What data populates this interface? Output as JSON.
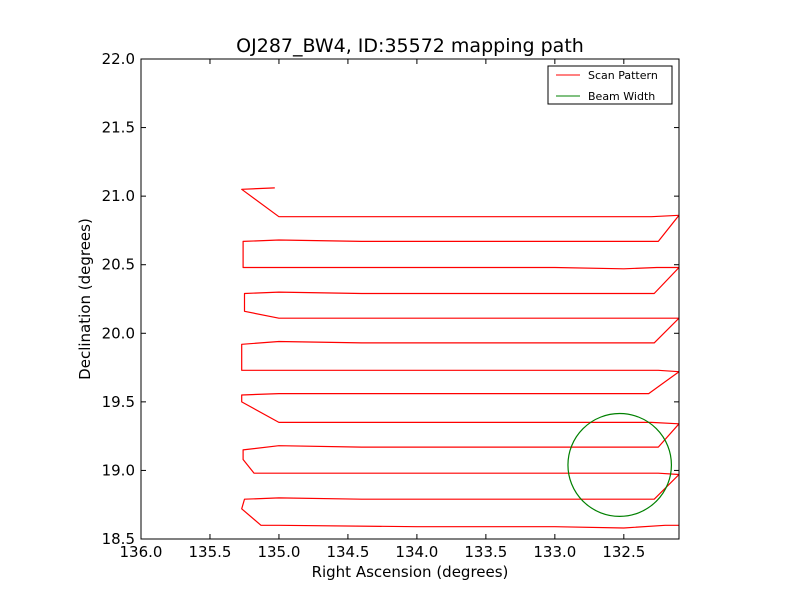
{
  "chart_data": {
    "type": "line",
    "title": "OJ287_BW4, ID:35572 mapping path",
    "xlabel": "Right Ascension (degrees)",
    "ylabel": "Declination (degrees)",
    "xlim": [
      136.0,
      132.1
    ],
    "ylim": [
      18.5,
      22.0
    ],
    "x_inverted": true,
    "xticks": [
      136.0,
      135.5,
      135.0,
      134.5,
      134.0,
      133.5,
      133.0,
      132.5
    ],
    "xtick_labels": [
      "136.0",
      "135.5",
      "135.0",
      "134.5",
      "134.0",
      "133.5",
      "133.0",
      "132.5"
    ],
    "yticks": [
      18.5,
      19.0,
      19.5,
      20.0,
      20.5,
      21.0,
      21.5,
      22.0
    ],
    "ytick_labels": [
      "18.5",
      "19.0",
      "19.5",
      "20.0",
      "20.5",
      "21.0",
      "21.5",
      "22.0"
    ],
    "grid": false,
    "legend_position": "top-right",
    "series": [
      {
        "name": "Scan Pattern",
        "color": "#ff0000",
        "x": [
          132.1,
          132.2,
          132.5,
          133.0,
          134.0,
          135.0,
          135.13,
          135.27,
          135.25,
          135.0,
          134.4,
          133.5,
          132.6,
          132.28,
          132.1,
          132.25,
          132.4,
          133.0,
          134.0,
          135.0,
          135.18,
          135.26,
          135.26,
          135.0,
          134.4,
          133.5,
          132.6,
          132.25,
          132.1,
          132.3,
          132.5,
          133.0,
          134.0,
          135.0,
          135.27,
          135.27,
          135.0,
          134.4,
          133.5,
          132.6,
          132.32,
          132.1,
          132.25,
          133.0,
          134.0,
          135.0,
          135.27,
          135.27,
          135.0,
          134.4,
          133.5,
          132.6,
          132.28,
          132.1,
          132.3,
          132.5,
          133.0,
          134.0,
          135.0,
          135.25,
          135.25,
          135.0,
          134.4,
          133.5,
          132.6,
          132.28,
          132.1,
          132.26,
          132.5,
          133.0,
          134.0,
          135.0,
          135.26,
          135.26,
          135.0,
          134.4,
          133.5,
          132.6,
          132.25,
          132.1,
          132.3,
          132.5,
          133.0,
          134.0,
          135.0,
          135.27,
          135.03
        ],
        "y": [
          18.6,
          18.6,
          18.58,
          18.59,
          18.59,
          18.6,
          18.6,
          18.72,
          18.79,
          18.8,
          18.79,
          18.79,
          18.79,
          18.79,
          18.97,
          18.98,
          18.98,
          18.98,
          18.98,
          18.98,
          18.98,
          19.08,
          19.15,
          19.18,
          19.17,
          19.17,
          19.17,
          19.17,
          19.34,
          19.35,
          19.35,
          19.35,
          19.35,
          19.35,
          19.5,
          19.55,
          19.56,
          19.56,
          19.56,
          19.56,
          19.56,
          19.72,
          19.73,
          19.73,
          19.73,
          19.73,
          19.73,
          19.92,
          19.94,
          19.93,
          19.93,
          19.93,
          19.93,
          20.11,
          20.11,
          20.11,
          20.11,
          20.11,
          20.11,
          20.16,
          20.29,
          20.3,
          20.29,
          20.29,
          20.29,
          20.29,
          20.48,
          20.48,
          20.47,
          20.48,
          20.48,
          20.48,
          20.48,
          20.67,
          20.68,
          20.67,
          20.67,
          20.67,
          20.67,
          20.86,
          20.85,
          20.85,
          20.85,
          20.85,
          20.85,
          21.05,
          21.06
        ]
      },
      {
        "name": "Beam Width",
        "color": "#008000",
        "shape": "circle",
        "center": [
          132.53,
          19.04
        ],
        "radius": 0.375
      }
    ]
  }
}
